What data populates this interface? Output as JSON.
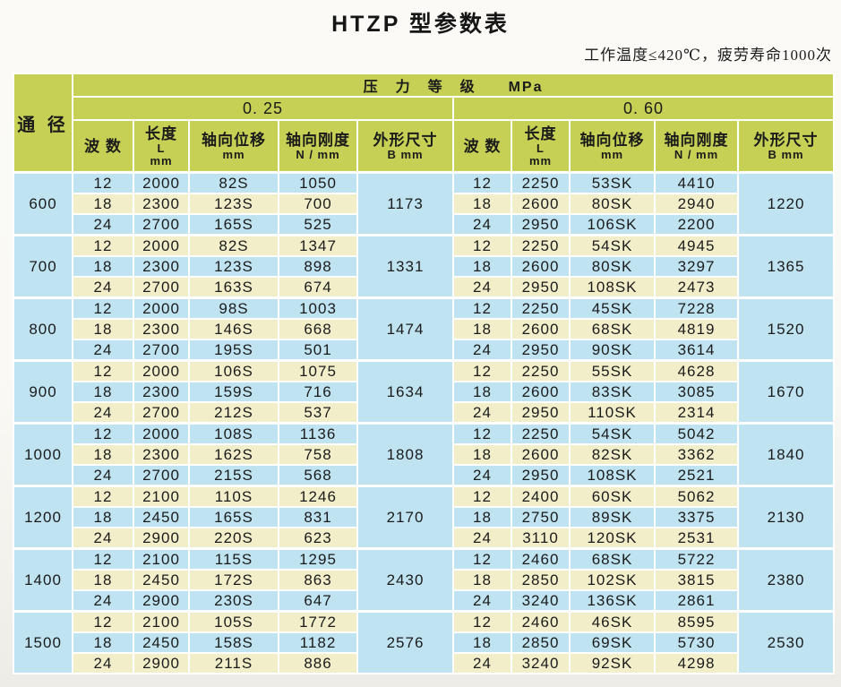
{
  "page": {
    "title": "HTZP 型参数表",
    "subtitle": "工作温度≤420℃，疲劳寿命1000次"
  },
  "table": {
    "pressure_header": "压　力　等　级　　MPa",
    "corner_label": "通 径",
    "pressure_groups": [
      {
        "label": "0. 25"
      },
      {
        "label": "0. 60"
      }
    ],
    "columns": {
      "waves": [
        "波 数"
      ],
      "length": [
        "长度",
        "L",
        "mm"
      ],
      "displacement": [
        "轴向位移",
        "mm"
      ],
      "stiffness": [
        "轴向刚度",
        "N / mm"
      ],
      "outline": [
        "外形尺寸",
        "B mm"
      ]
    },
    "colors": {
      "header_green": "#c6d054",
      "row_blue": "#bfe3f1",
      "row_cream": "#f2eeca",
      "grid_white": "#ffffff"
    },
    "groups": [
      {
        "diameter": "600",
        "p025": {
          "rows": [
            [
              "12",
              "2000",
              "82S",
              "1050"
            ],
            [
              "18",
              "2300",
              "123S",
              "700"
            ],
            [
              "24",
              "2700",
              "165S",
              "525"
            ]
          ],
          "b": "1173"
        },
        "p060": {
          "rows": [
            [
              "12",
              "2250",
              "53SK",
              "4410"
            ],
            [
              "18",
              "2600",
              "80SK",
              "2940"
            ],
            [
              "24",
              "2950",
              "106SK",
              "2200"
            ]
          ],
          "b": "1220"
        }
      },
      {
        "diameter": "700",
        "p025": {
          "rows": [
            [
              "12",
              "2000",
              "82S",
              "1347"
            ],
            [
              "18",
              "2300",
              "123S",
              "898"
            ],
            [
              "24",
              "2700",
              "163S",
              "674"
            ]
          ],
          "b": "1331"
        },
        "p060": {
          "rows": [
            [
              "12",
              "2250",
              "54SK",
              "4945"
            ],
            [
              "18",
              "2600",
              "80SK",
              "3297"
            ],
            [
              "24",
              "2950",
              "108SK",
              "2473"
            ]
          ],
          "b": "1365"
        }
      },
      {
        "diameter": "800",
        "p025": {
          "rows": [
            [
              "12",
              "2000",
              "98S",
              "1003"
            ],
            [
              "18",
              "2300",
              "146S",
              "668"
            ],
            [
              "24",
              "2700",
              "195S",
              "501"
            ]
          ],
          "b": "1474"
        },
        "p060": {
          "rows": [
            [
              "12",
              "2250",
              "45SK",
              "7228"
            ],
            [
              "18",
              "2600",
              "68SK",
              "4819"
            ],
            [
              "24",
              "2950",
              "90SK",
              "3614"
            ]
          ],
          "b": "1520"
        }
      },
      {
        "diameter": "900",
        "p025": {
          "rows": [
            [
              "12",
              "2000",
              "106S",
              "1075"
            ],
            [
              "18",
              "2300",
              "159S",
              "716"
            ],
            [
              "24",
              "2700",
              "212S",
              "537"
            ]
          ],
          "b": "1634"
        },
        "p060": {
          "rows": [
            [
              "12",
              "2250",
              "55SK",
              "4628"
            ],
            [
              "18",
              "2600",
              "83SK",
              "3085"
            ],
            [
              "24",
              "2950",
              "110SK",
              "2314"
            ]
          ],
          "b": "1670"
        }
      },
      {
        "diameter": "1000",
        "p025": {
          "rows": [
            [
              "12",
              "2000",
              "108S",
              "1136"
            ],
            [
              "18",
              "2300",
              "162S",
              "758"
            ],
            [
              "24",
              "2700",
              "215S",
              "568"
            ]
          ],
          "b": "1808"
        },
        "p060": {
          "rows": [
            [
              "12",
              "2250",
              "54SK",
              "5042"
            ],
            [
              "18",
              "2600",
              "82SK",
              "3362"
            ],
            [
              "24",
              "2950",
              "108SK",
              "2521"
            ]
          ],
          "b": "1840"
        }
      },
      {
        "diameter": "1200",
        "p025": {
          "rows": [
            [
              "12",
              "2100",
              "110S",
              "1246"
            ],
            [
              "18",
              "2450",
              "165S",
              "831"
            ],
            [
              "24",
              "2900",
              "220S",
              "623"
            ]
          ],
          "b": "2170"
        },
        "p060": {
          "rows": [
            [
              "12",
              "2400",
              "60SK",
              "5062"
            ],
            [
              "18",
              "2750",
              "89SK",
              "3375"
            ],
            [
              "24",
              "3110",
              "120SK",
              "2531"
            ]
          ],
          "b": "2130"
        }
      },
      {
        "diameter": "1400",
        "p025": {
          "rows": [
            [
              "12",
              "2100",
              "115S",
              "1295"
            ],
            [
              "18",
              "2450",
              "172S",
              "863"
            ],
            [
              "24",
              "2900",
              "230S",
              "647"
            ]
          ],
          "b": "2430"
        },
        "p060": {
          "rows": [
            [
              "12",
              "2460",
              "68SK",
              "5722"
            ],
            [
              "18",
              "2850",
              "102SK",
              "3815"
            ],
            [
              "24",
              "3240",
              "136SK",
              "2861"
            ]
          ],
          "b": "2380"
        }
      },
      {
        "diameter": "1500",
        "p025": {
          "rows": [
            [
              "12",
              "2100",
              "105S",
              "1772"
            ],
            [
              "18",
              "2450",
              "158S",
              "1182"
            ],
            [
              "24",
              "2900",
              "211S",
              "886"
            ]
          ],
          "b": "2576"
        },
        "p060": {
          "rows": [
            [
              "12",
              "2460",
              "46SK",
              "8595"
            ],
            [
              "18",
              "2850",
              "69SK",
              "5730"
            ],
            [
              "24",
              "3240",
              "92SK",
              "4298"
            ]
          ],
          "b": "2530"
        }
      }
    ]
  }
}
